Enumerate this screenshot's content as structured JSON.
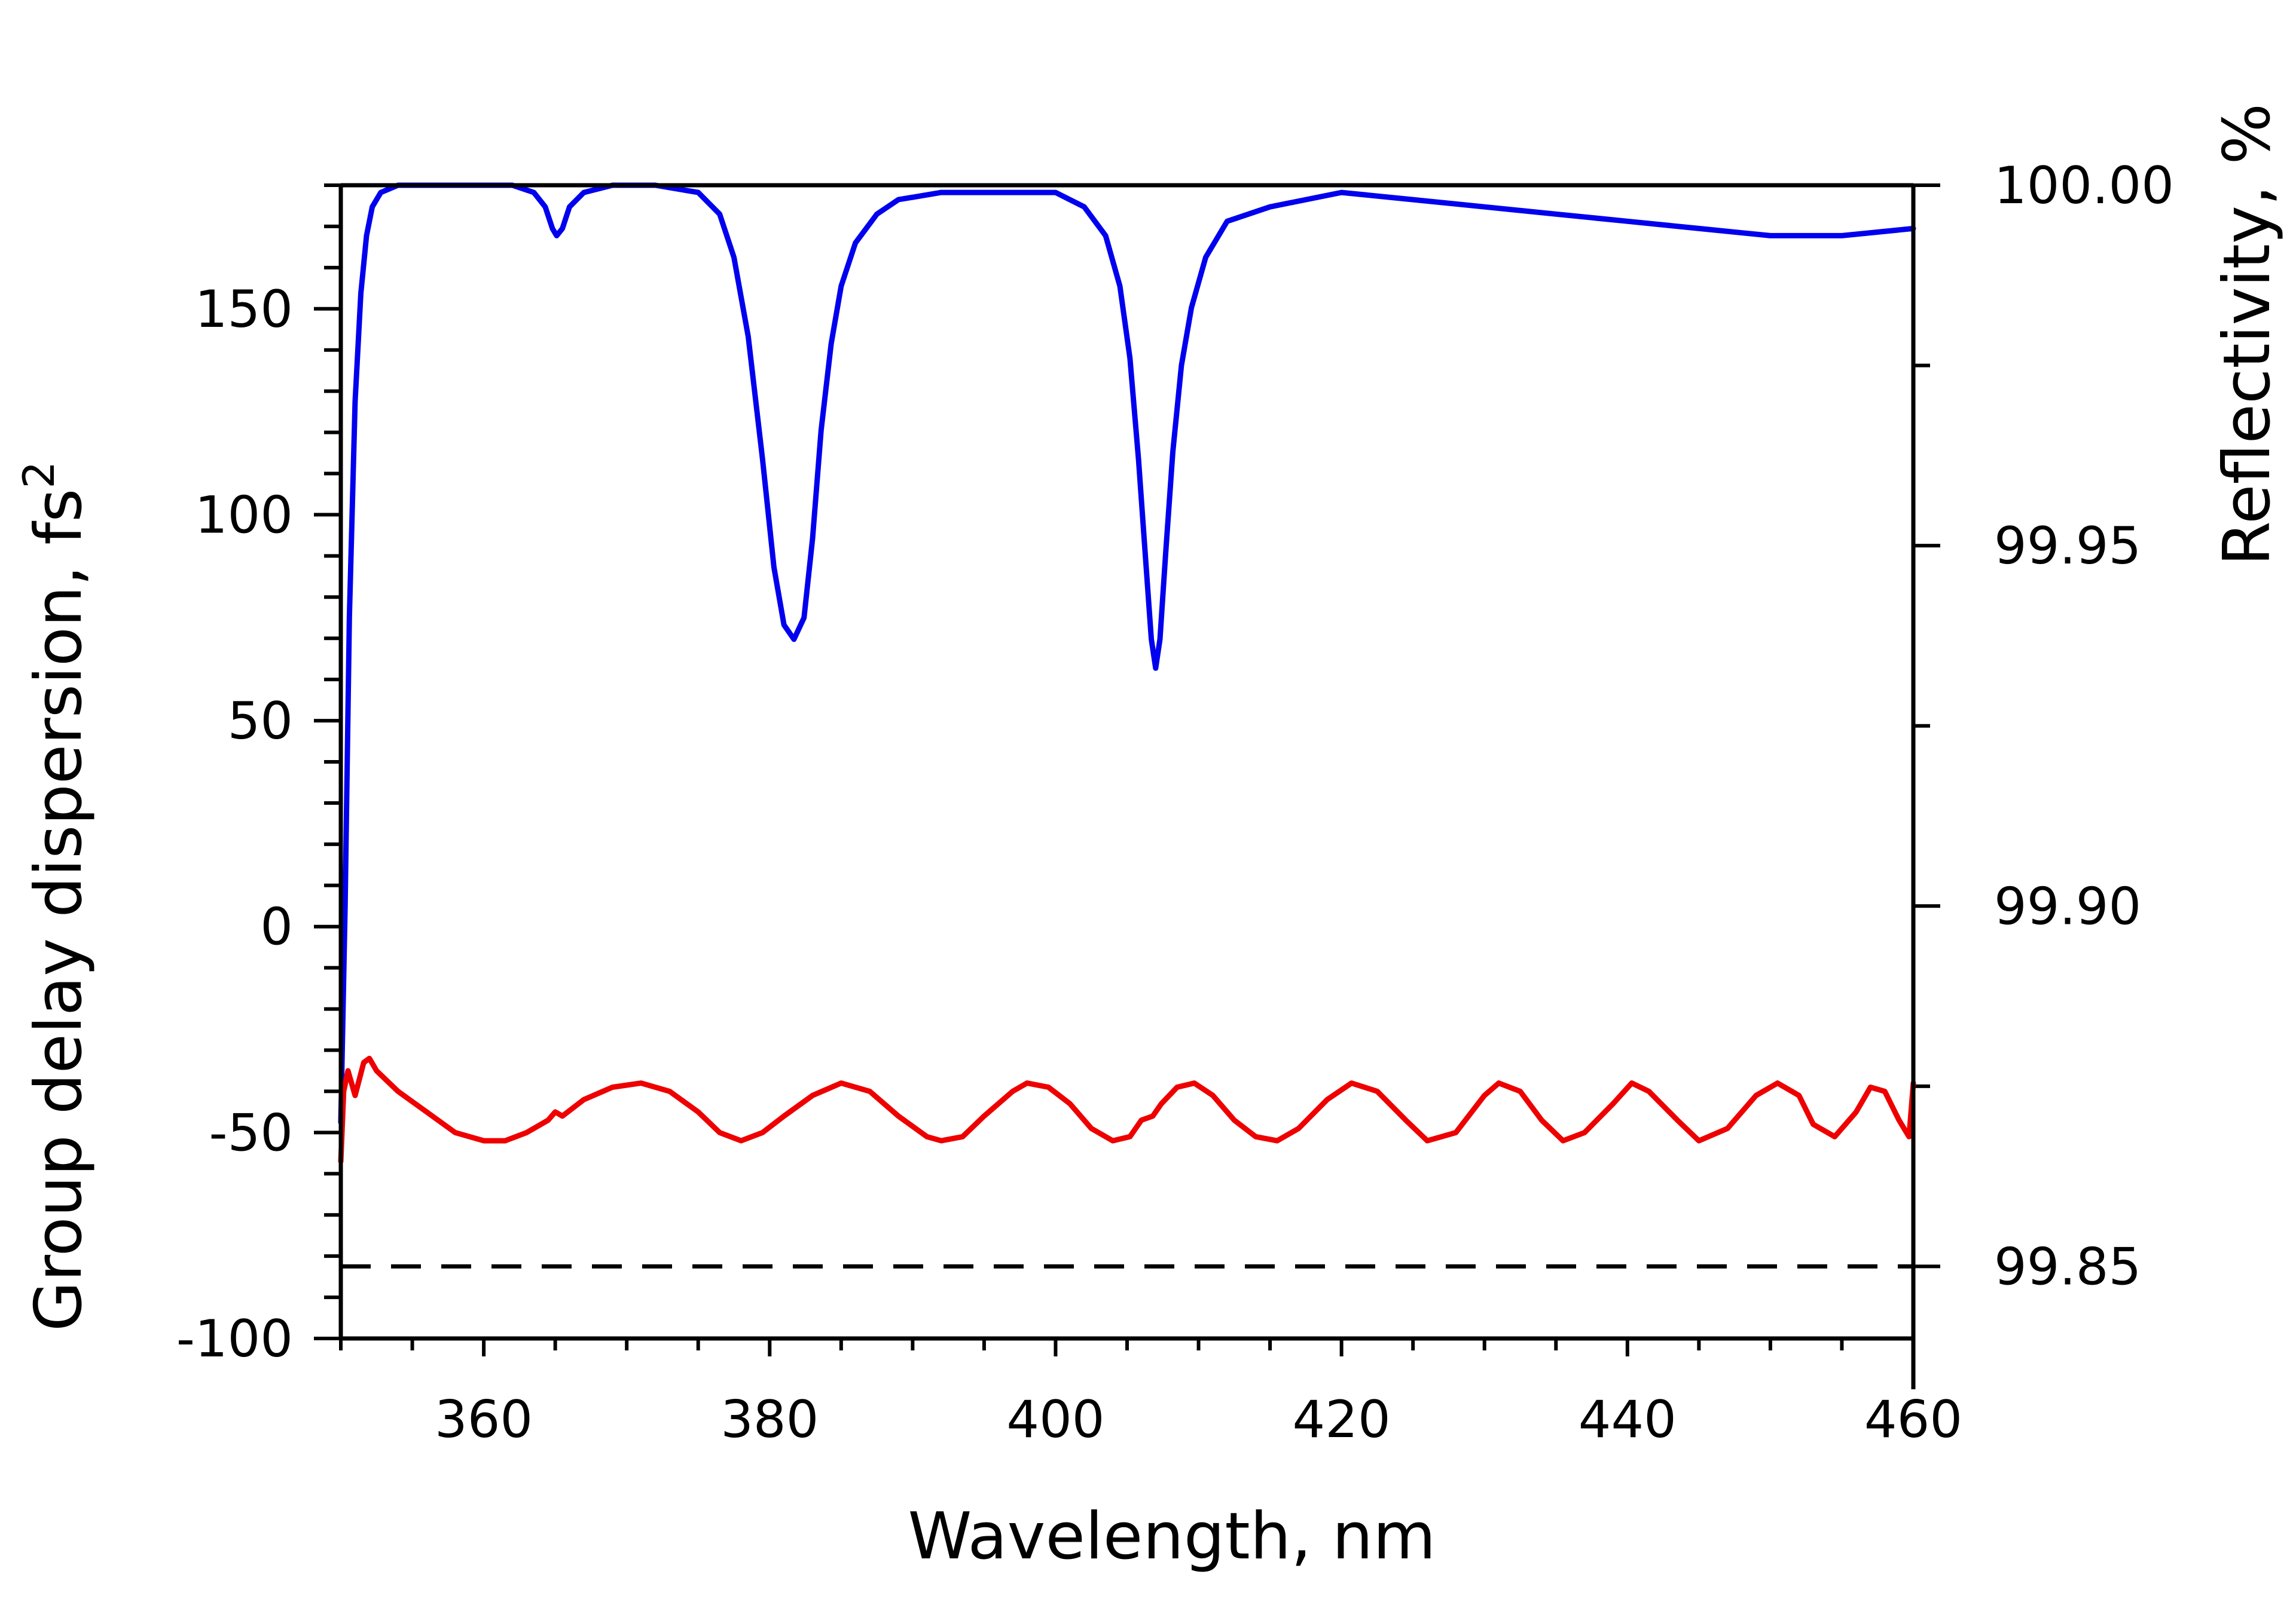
{
  "chart_data": {
    "type": "line",
    "title": "",
    "xlabel": "Wavelength, nm",
    "ylabel_left": "Group delay dispersion, fs",
    "ylabel_left_sup": "2",
    "ylabel_right": "Reflectivity, %",
    "xlim": [
      350,
      460
    ],
    "x_ticks": [
      360,
      380,
      400,
      420,
      440,
      460
    ],
    "x_tick_labels": [
      "360",
      "380",
      "400",
      "420",
      "440",
      "460"
    ],
    "ylim_left": [
      -100,
      180
    ],
    "y_left_ticks": [
      -100,
      -50,
      0,
      50,
      100,
      150
    ],
    "y_left_tick_labels": [
      "-100",
      "-50",
      "0",
      "50",
      "100",
      "150"
    ],
    "ylim_right": [
      99.84,
      100.0
    ],
    "y_right_ticks": [
      99.85,
      99.9,
      99.95,
      100.0
    ],
    "y_right_tick_labels": [
      "99.85",
      "99.90",
      "99.95",
      "100.00"
    ],
    "grid": false,
    "legend": "none",
    "reference_line": {
      "axis": "right",
      "y": 99.85,
      "style": "dashed",
      "color": "#000000"
    },
    "series": [
      {
        "axis": "right",
        "color": "#0000ee",
        "x": [
          350,
          350.3,
          350.6,
          351,
          351.4,
          351.8,
          352.2,
          352.8,
          354,
          356,
          360,
          362,
          363.5,
          364.3,
          364.8,
          365.1,
          365.5,
          366,
          367,
          369,
          372,
          375,
          376.5,
          377.5,
          378.5,
          379.5,
          380.3,
          381,
          381.7,
          382.4,
          383,
          383.6,
          384.3,
          385,
          386,
          387.5,
          389,
          392,
          396,
          400,
          402,
          403.5,
          404.5,
          405.2,
          405.8,
          406.3,
          406.7,
          407,
          407.3,
          407.7,
          408.2,
          408.8,
          409.5,
          410.5,
          412,
          415,
          420,
          425,
          430,
          435,
          440,
          445,
          450,
          455,
          460
        ],
        "values": [
          99.87,
          99.9,
          99.94,
          99.97,
          99.985,
          99.993,
          99.997,
          99.999,
          100.0,
          100.0,
          100.0,
          100.0,
          99.999,
          99.997,
          99.994,
          99.993,
          99.994,
          99.997,
          99.999,
          100.0,
          100.0,
          99.999,
          99.996,
          99.99,
          99.979,
          99.962,
          99.947,
          99.939,
          99.937,
          99.94,
          99.951,
          99.966,
          99.978,
          99.986,
          99.992,
          99.996,
          99.998,
          99.999,
          99.999,
          99.999,
          99.997,
          99.993,
          99.986,
          99.976,
          99.962,
          99.948,
          99.937,
          99.933,
          99.937,
          99.949,
          99.963,
          99.975,
          99.983,
          99.99,
          99.995,
          99.997,
          99.999,
          99.998,
          99.997,
          99.996,
          99.995,
          99.994,
          99.993,
          99.993,
          99.994
        ]
      },
      {
        "axis": "left",
        "color": "#ee0000",
        "x": [
          350,
          350.2,
          350.5,
          351,
          351.3,
          351.6,
          352,
          352.5,
          354,
          356,
          358,
          360,
          361.5,
          363,
          364.5,
          365,
          365.5,
          367,
          369,
          371,
          373,
          375,
          376.5,
          378,
          379.5,
          381,
          383,
          385,
          387,
          389,
          391,
          392,
          393.5,
          395,
          397,
          398,
          399.5,
          401,
          402.5,
          404,
          405.2,
          406,
          406.8,
          407.4,
          408.5,
          409.7,
          411,
          412.5,
          414,
          415.5,
          417,
          419,
          420.7,
          422.5,
          424.5,
          426,
          428,
          430,
          431,
          432.5,
          434,
          435.5,
          437,
          439,
          440.3,
          441.5,
          443.5,
          445,
          447,
          449,
          450.5,
          452,
          453,
          454.5,
          456,
          457,
          458,
          459,
          459.7,
          460
        ],
        "values": [
          -57,
          -40,
          -35,
          -41,
          -37,
          -33,
          -32,
          -35,
          -40,
          -45,
          -50,
          -52,
          -52,
          -50,
          -47,
          -45,
          -46,
          -42,
          -39,
          -38,
          -40,
          -45,
          -50,
          -52,
          -50,
          -46,
          -41,
          -38,
          -40,
          -46,
          -51,
          -52,
          -51,
          -46,
          -40,
          -38,
          -39,
          -43,
          -49,
          -52,
          -51,
          -47,
          -46,
          -43,
          -39,
          -38,
          -41,
          -47,
          -51,
          -52,
          -49,
          -42,
          -38,
          -40,
          -47,
          -52,
          -50,
          -41,
          -38,
          -40,
          -47,
          -52,
          -50,
          -43,
          -38,
          -40,
          -47,
          -52,
          -49,
          -41,
          -38,
          -41,
          -48,
          -51,
          -45,
          -39,
          -40,
          -47,
          -51,
          -38
        ]
      }
    ]
  }
}
